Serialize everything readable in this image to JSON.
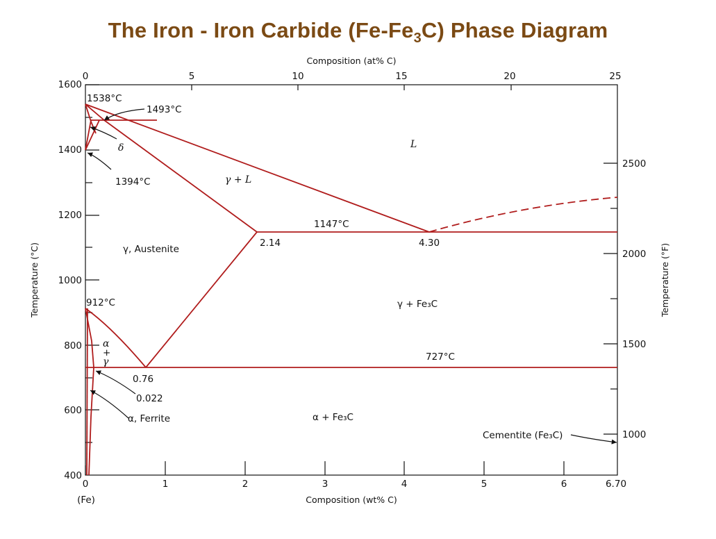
{
  "title": {
    "main": "The Iron - Iron Carbide (Fe-Fe",
    "sub": "3",
    "tail": "C) Phase Diagram"
  },
  "colors": {
    "title": "#7b4a14",
    "phase_line": "#b01c1c",
    "axis": "#111111"
  },
  "axes": {
    "bottom_label": "Composition (wt% C)",
    "top_label": "Composition (at% C)",
    "left_label": "Temperature (°C)",
    "right_label": "Temperature (°F)",
    "bottom_ticks": [
      "0",
      "1",
      "2",
      "3",
      "4",
      "5",
      "6",
      "6.70"
    ],
    "top_ticks": [
      "0",
      "5",
      "10",
      "15",
      "20",
      "25"
    ],
    "left_ticks": [
      "1600",
      "1400",
      "1200",
      "1000",
      "800",
      "600",
      "400"
    ],
    "right_ticks": [
      "2500",
      "2000",
      "1500",
      "1000"
    ],
    "fe_label": "(Fe)",
    "wt_range": [
      0,
      6.7
    ],
    "temp_range_c": [
      400,
      1600
    ]
  },
  "annotations": {
    "t1538": "1538°C",
    "t1493": "1493°C",
    "delta": "δ",
    "t1394": "1394°C",
    "L": "L",
    "gamma_L": "γ + L",
    "t1147": "1147°C",
    "c214": "2.14",
    "c430": "4.30",
    "austenite": "γ, Austenite",
    "t912": "912°C",
    "gamma_fe3c": "γ + Fe₃C",
    "alpha": "α",
    "plus": "+",
    "gamma": "γ",
    "t727": "727°C",
    "c076": "0.76",
    "c0022": "0.022",
    "ferrite": "α, Ferrite",
    "alpha_fe3c": "α + Fe₃C",
    "cementite": "Cementite (Fe₃C)"
  },
  "phase_points": {
    "eutectic": {
      "wt": 4.3,
      "temp_c": 1147
    },
    "austenite_max": {
      "wt": 2.14,
      "temp_c": 1147
    },
    "eutectoid": {
      "wt": 0.76,
      "temp_c": 727
    },
    "ferrite_max": {
      "wt": 0.022,
      "temp_c": 727
    },
    "pure_fe_melting": {
      "wt": 0,
      "temp_c": 1538
    },
    "peritectic": {
      "wt": 0.17,
      "temp_c": 1493
    },
    "delta_gamma": {
      "wt": 0,
      "temp_c": 1394
    },
    "alpha_gamma": {
      "wt": 0,
      "temp_c": 912
    }
  }
}
